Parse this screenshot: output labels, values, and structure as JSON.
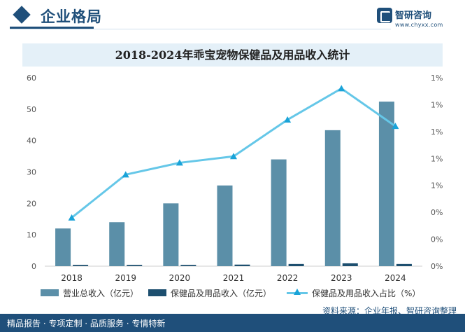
{
  "header": {
    "title": "企业格局"
  },
  "logo": {
    "name": "智研咨询",
    "url": "www.chyxx.com"
  },
  "footer": {
    "left_text": "精品报告 · 专项定制 · 品质服务 · 专情特新",
    "source": "资料来源：企业年报、智研咨询整理"
  },
  "colors": {
    "revenue": "#5b8fa8",
    "pet_health": "#1d4f6f",
    "ratio_line": "#65c7e8",
    "ratio_marker": "#1aa3d8"
  },
  "chart_data": {
    "type": "bar",
    "title": "2018-2024年乖宝宠物保健品及用品收入统计",
    "categories": [
      "2018",
      "2019",
      "2020",
      "2021",
      "2022",
      "2023",
      "2024"
    ],
    "series": [
      {
        "name": "营业总收入（亿元）",
        "type": "bar",
        "axis": "left",
        "values": [
          12,
          14,
          20,
          25.7,
          34,
          43.3,
          52.4
        ]
      },
      {
        "name": "保健品及用品收入（亿元）",
        "type": "bar",
        "axis": "left",
        "values": [
          0.4,
          0.4,
          0.4,
          0.5,
          0.7,
          0.9,
          0.7
        ]
      },
      {
        "name": "保健品及用品收入占比（%）",
        "type": "line",
        "axis": "right",
        "values": [
          0.45,
          0.85,
          0.96,
          1.02,
          1.36,
          1.65,
          1.3
        ]
      }
    ],
    "left_axis": {
      "ylim": [
        0,
        60
      ],
      "ticks": [
        0,
        10,
        20,
        30,
        40,
        50,
        60
      ]
    },
    "right_axis": {
      "ylim": [
        0,
        1.75
      ],
      "tick_labels": [
        "0%",
        "0%",
        "0%",
        "1%",
        "1%",
        "1%",
        "1%",
        "1%"
      ]
    },
    "legend_position": "bottom"
  }
}
